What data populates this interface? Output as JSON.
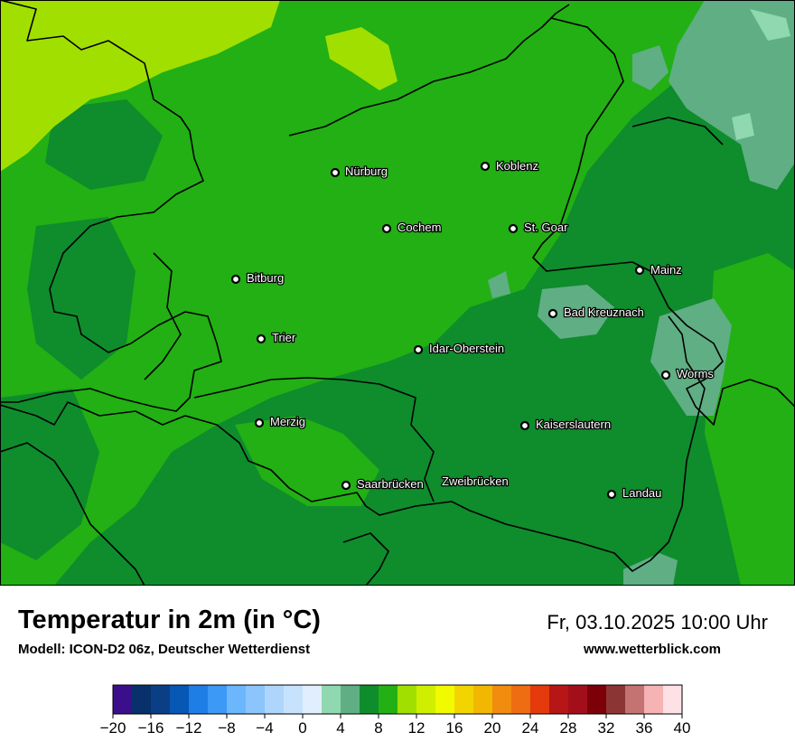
{
  "title": "Temperatur in 2m (in °C)",
  "model": "Modell: ICON-D2 06z, Deutscher Wetterdienst",
  "datetime": "Fr, 03.10.2025 10:00 Uhr",
  "website": "www.wetterblick.com",
  "cities": [
    {
      "name": "Nürburg"
    },
    {
      "name": "Koblenz"
    },
    {
      "name": "Cochem"
    },
    {
      "name": "St. Goar"
    },
    {
      "name": "Bitburg"
    },
    {
      "name": "Mainz"
    },
    {
      "name": "Bad Kreuznach"
    },
    {
      "name": "Trier"
    },
    {
      "name": "Idar-Oberstein"
    },
    {
      "name": "Worms"
    },
    {
      "name": "Merzig"
    },
    {
      "name": "Kaiserslautern"
    },
    {
      "name": "Saarbrücken"
    },
    {
      "name": "Zweibrücken"
    },
    {
      "name": "Landau"
    }
  ],
  "legend": {
    "min": -20,
    "max": 40,
    "step": 2,
    "colors": [
      "#3b0e8c",
      "#08306b",
      "#0b3f85",
      "#0757b5",
      "#1f7ee6",
      "#3c99f5",
      "#6cb6fb",
      "#8cc4fc",
      "#aed6fd",
      "#c6e2fd",
      "#e0eefe",
      "#8fd8b0",
      "#5fae84",
      "#0f8c2c",
      "#22b014",
      "#a1df00",
      "#d0ef00",
      "#f2fa00",
      "#f2d400",
      "#f2b700",
      "#f28c0f",
      "#ee6c12",
      "#e43a0c",
      "#b71616",
      "#a20f1a",
      "#7c0008",
      "#8c3535",
      "#c57272",
      "#f5b3b3",
      "#fde1e4"
    ],
    "ticks": [
      "−20",
      "−16",
      "−12",
      "−8",
      "−4",
      "0",
      "4",
      "8",
      "12",
      "16",
      "20",
      "24",
      "28",
      "32",
      "36",
      "40"
    ]
  }
}
